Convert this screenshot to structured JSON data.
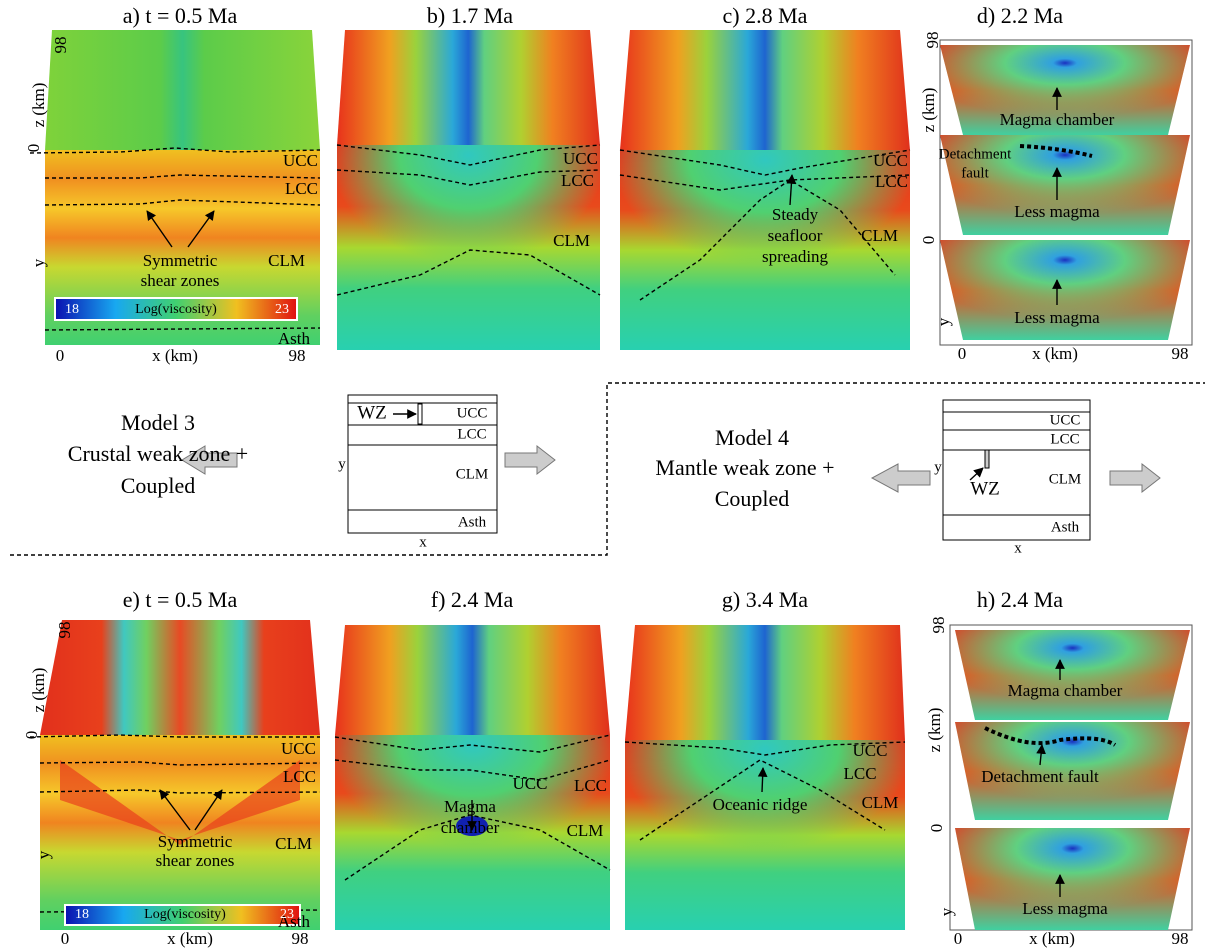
{
  "panel_a": {
    "title": "a) t = 0.5 Ma",
    "z_max": 98,
    "z_label": "z (km)",
    "z_min": 0,
    "y_label": "y",
    "x_min": 0,
    "x_label": "x (km)",
    "x_max": 98,
    "layers": [
      "UCC",
      "LCC",
      "CLM",
      "Asth"
    ],
    "annotation": [
      "Symmetric",
      "shear zones"
    ],
    "colorbar": {
      "min": 18,
      "label": "Log(viscosity)",
      "max": 23
    }
  },
  "panel_b": {
    "title": "b) 1.7 Ma",
    "layers": [
      "UCC",
      "LCC",
      "CLM"
    ]
  },
  "panel_c": {
    "title": "c) 2.8 Ma",
    "layers": [
      "UCC",
      "LCC",
      "CLM"
    ],
    "annotation": [
      "Steady",
      "seafloor",
      "spreading"
    ]
  },
  "panel_d": {
    "title": "d) 2.2 Ma",
    "z_max": 98,
    "z_label": "z (km)",
    "z_min": 0,
    "y_label": "y",
    "x_min": 0,
    "x_label": "x (km)",
    "x_max": 98,
    "labels": [
      "Magma chamber",
      "Detachment",
      "fault",
      "Less magma",
      "Less magma"
    ]
  },
  "model_3": {
    "lines": [
      "Model 3",
      "Crustal weak zone +",
      "Coupled"
    ],
    "schematic": {
      "wz": "WZ",
      "layers": [
        "UCC",
        "LCC",
        "CLM",
        "Asth"
      ],
      "y_label": "y",
      "x_label": "x"
    }
  },
  "model_4": {
    "lines": [
      "Model 4",
      "Mantle weak zone +",
      "Coupled"
    ],
    "schematic": {
      "wz": "WZ",
      "layers": [
        "UCC",
        "LCC",
        "CLM",
        "Asth"
      ],
      "y_label": "y",
      "x_label": "x"
    }
  },
  "panel_e": {
    "title": "e) t = 0.5 Ma",
    "z_max": 98,
    "z_label": "z (km)",
    "z_min": 0,
    "y_label": "y",
    "x_min": 0,
    "x_label": "x (km)",
    "x_max": 98,
    "layers": [
      "UCC",
      "LCC",
      "CLM",
      "Asth"
    ],
    "annotation": [
      "Symmetric",
      "shear zones"
    ],
    "colorbar": {
      "min": 18,
      "label": "Log(viscosity)",
      "max": 23
    }
  },
  "panel_f": {
    "title": "f) 2.4 Ma",
    "layers": [
      "UCC",
      "LCC",
      "CLM"
    ],
    "annotation": [
      "Magma",
      "chamber"
    ]
  },
  "panel_g": {
    "title": "g) 3.4 Ma",
    "layers": [
      "UCC",
      "LCC",
      "CLM"
    ],
    "annotation": [
      "Oceanic ridge"
    ]
  },
  "panel_h": {
    "title": "h) 2.4 Ma",
    "z_max": 98,
    "z_label": "z (km)",
    "z_min": 0,
    "y_label": "y",
    "x_min": 0,
    "x_label": "x (km)",
    "x_max": 98,
    "labels": [
      "Magma chamber",
      "Detachment fault",
      "Less magma"
    ]
  }
}
